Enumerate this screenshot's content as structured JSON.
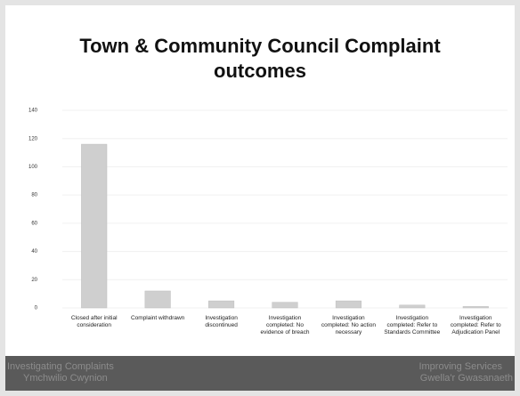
{
  "chart_data": {
    "type": "bar",
    "title": "Town & Community Council Complaint outcomes",
    "categories": [
      "Closed after initial consideration",
      "Complaint withdrawn",
      "Investigation discontinued",
      "Investigation completed: No evidence of breach",
      "Investigation completed: No action necessary",
      "Investigation completed: Refer to Standards Committee",
      "Investigation completed: Refer to Adjudication Panel"
    ],
    "values": [
      116,
      12,
      5,
      4,
      5,
      2,
      1
    ],
    "color": "#cfcfcf",
    "ylim": [
      0,
      140
    ],
    "yticks": [
      0,
      20,
      40,
      60,
      80,
      100,
      120,
      140
    ],
    "grid": true
  },
  "footer": {
    "left": [
      "Investigating Complaints",
      "Ymchwilio Cwynion"
    ],
    "right": [
      "Improving Services",
      "Gwella'r Gwasanaeth"
    ]
  }
}
